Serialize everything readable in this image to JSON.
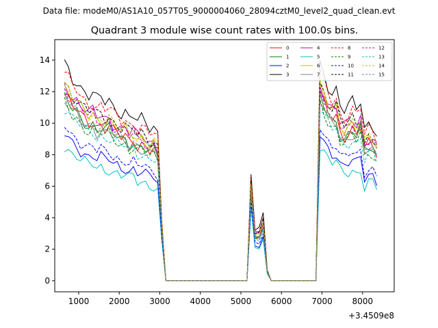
{
  "suptitle": "Data file: modeM0/AS1A10_057T05_9000004060_28094cztM0_level2_quad_clean.evt",
  "chart_data": {
    "type": "line",
    "title": "Quadrant 3 module wise count rates with 100.0s bins.",
    "xlabel": "",
    "ylabel": "",
    "x_offset_label": "+3.4509e8",
    "xlim": [
      410,
      8780
    ],
    "ylim": [
      -0.7,
      15.3
    ],
    "xticks": [
      1000,
      2000,
      3000,
      4000,
      5000,
      6000,
      7000,
      8000
    ],
    "yticks": [
      0,
      2,
      4,
      6,
      8,
      10,
      12,
      14
    ],
    "legend_position": "top-right",
    "x": [
      650,
      750,
      850,
      950,
      1050,
      1150,
      1250,
      1350,
      1450,
      1550,
      1650,
      1750,
      1850,
      1950,
      2050,
      2150,
      2250,
      2350,
      2450,
      2550,
      2650,
      2750,
      2850,
      2950,
      3050,
      3150,
      3250,
      3350,
      3450,
      3550,
      3650,
      3750,
      3850,
      3950,
      4050,
      4150,
      4250,
      4350,
      4450,
      4550,
      4650,
      4750,
      4850,
      4950,
      5050,
      5150,
      5250,
      5350,
      5450,
      5550,
      5650,
      5750,
      5850,
      5950,
      6050,
      6150,
      6250,
      6350,
      6450,
      6550,
      6650,
      6750,
      6850,
      6950,
      7050,
      7150,
      7250,
      7350,
      7450,
      7550,
      7650,
      7750,
      7850,
      7950,
      8050,
      8150,
      8250,
      8350
    ],
    "envelope": {
      "shape": [
        1.0,
        0.97,
        0.93,
        0.92,
        0.89,
        0.87,
        0.85,
        0.86,
        0.83,
        0.84,
        0.82,
        0.83,
        0.8,
        0.79,
        0.77,
        0.78,
        0.75,
        0.76,
        0.73,
        0.74,
        0.72,
        0.7,
        0.71,
        0.68,
        0.28,
        0.0,
        0.0,
        0.0,
        0.0,
        0.0,
        0.0,
        0.0,
        0.0,
        0.0,
        0.0,
        0.0,
        0.0,
        0.0,
        0.0,
        0.0,
        0.0,
        0.0,
        0.0,
        0.0,
        0.0,
        0.0,
        0.5,
        0.24,
        0.24,
        0.3,
        0.05,
        0.0,
        0.0,
        0.0,
        0.0,
        0.0,
        0.0,
        0.0,
        0.0,
        0.0,
        0.0,
        0.0,
        0.0,
        1.0,
        0.95,
        0.9,
        0.87,
        0.88,
        0.8,
        0.78,
        0.8,
        0.82,
        0.79,
        0.83,
        0.7,
        0.73,
        0.72,
        0.68
      ],
      "note": "series value = base * shape + noise (shape encodes the common light curve)"
    },
    "series": [
      {
        "name": "0",
        "color": "#ff0000",
        "dash": "solid",
        "base": 11.8
      },
      {
        "name": "1",
        "color": "#008000",
        "dash": "solid",
        "base": 11.6
      },
      {
        "name": "2",
        "color": "#0000ff",
        "dash": "solid",
        "base": 9.3
      },
      {
        "name": "3",
        "color": "#000000",
        "dash": "solid",
        "base": 13.8
      },
      {
        "name": "4",
        "color": "#bf00bf",
        "dash": "solid",
        "base": 12.5
      },
      {
        "name": "5",
        "color": "#00bfbf",
        "dash": "solid",
        "base": 8.6
      },
      {
        "name": "6",
        "color": "#bfbf00",
        "dash": "solid",
        "base": 12.3
      },
      {
        "name": "7",
        "color": "#808080",
        "dash": "solid",
        "base": 11.4
      },
      {
        "name": "8",
        "color": "#ff0000",
        "dash": "dashed",
        "base": 13.2
      },
      {
        "name": "9",
        "color": "#008000",
        "dash": "dashed",
        "base": 11.2
      },
      {
        "name": "10",
        "color": "#0000ff",
        "dash": "dashed",
        "base": 9.9
      },
      {
        "name": "11",
        "color": "#000000",
        "dash": "dashed",
        "base": 12.6
      },
      {
        "name": "12",
        "color": "#bf00bf",
        "dash": "dashed",
        "base": 12.2
      },
      {
        "name": "13",
        "color": "#00bfbf",
        "dash": "dashed",
        "base": 11.0
      },
      {
        "name": "14",
        "color": "#bfbf00",
        "dash": "dashed",
        "base": 12.4
      },
      {
        "name": "15",
        "color": "#808080",
        "dash": "dashed",
        "base": 11.7
      }
    ]
  }
}
